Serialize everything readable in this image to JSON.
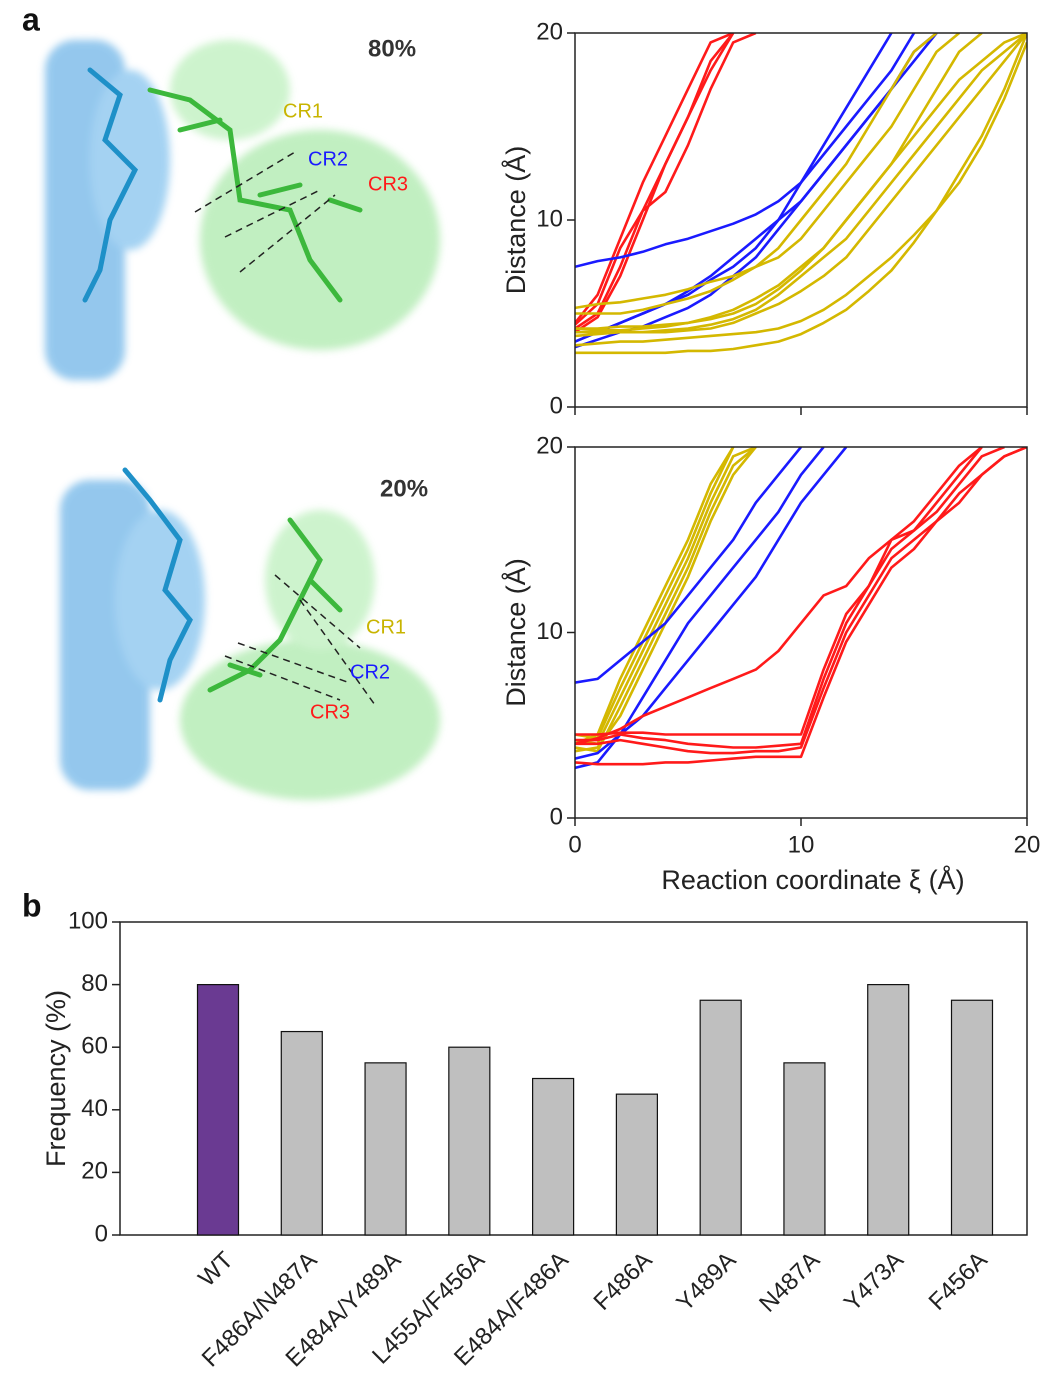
{
  "panel_labels": [
    "a",
    "b"
  ],
  "structures": [
    {
      "percent": "80%",
      "regions": [
        "CR1",
        "CR2",
        "CR3"
      ]
    },
    {
      "percent": "20%",
      "regions": [
        "CR1",
        "CR2",
        "CR3"
      ]
    }
  ],
  "chart_data": [
    {
      "type": "line",
      "y_label": "Distance (Å)",
      "x": [
        0,
        1,
        2,
        3,
        4,
        5,
        6,
        7,
        8,
        9,
        10,
        11,
        12,
        13,
        14,
        15,
        16,
        17,
        18,
        19,
        20
      ],
      "xlim": [
        0,
        20
      ],
      "xticks": [
        0,
        10,
        20
      ],
      "ylim": [
        0,
        20
      ],
      "yticks": [
        0,
        10,
        20
      ],
      "series": [
        {
          "color": "#ff1a1a",
          "values": [
            4.5,
            6,
            9,
            12,
            14.5,
            17,
            19.5,
            20,
            null,
            null,
            null,
            null,
            null,
            null,
            null,
            null,
            null,
            null,
            null,
            null,
            null
          ]
        },
        {
          "color": "#ff1a1a",
          "values": [
            4.2,
            5,
            7.5,
            10.5,
            13,
            15.5,
            18,
            20,
            null,
            null,
            null,
            null,
            null,
            null,
            null,
            null,
            null,
            null,
            null,
            null,
            null
          ]
        },
        {
          "color": "#ff1a1a",
          "values": [
            4.0,
            4.8,
            7,
            10,
            13,
            15.5,
            18.5,
            20,
            null,
            null,
            null,
            null,
            null,
            null,
            null,
            null,
            null,
            null,
            null,
            null,
            null
          ]
        },
        {
          "color": "#ff1a1a",
          "values": [
            4.4,
            5.5,
            8.5,
            10.5,
            11.5,
            14,
            17,
            19.5,
            20,
            null,
            null,
            null,
            null,
            null,
            null,
            null,
            null,
            null,
            null,
            null,
            null
          ]
        },
        {
          "color": "#1a1aff",
          "values": [
            7.5,
            7.8,
            8,
            8.3,
            8.7,
            9,
            9.4,
            9.8,
            10.3,
            11,
            12,
            13.5,
            15,
            16.5,
            18,
            20,
            null,
            null,
            null,
            null,
            null
          ]
        },
        {
          "color": "#1a1aff",
          "values": [
            3.5,
            4,
            4.5,
            5,
            5.5,
            6,
            6.8,
            7.5,
            8.5,
            10,
            12,
            14,
            16,
            18,
            20,
            null,
            null,
            null,
            null,
            null,
            null
          ]
        },
        {
          "color": "#1a1aff",
          "values": [
            3.2,
            3.6,
            4,
            4.3,
            4.8,
            5.3,
            6,
            7,
            8,
            9.5,
            11,
            12.5,
            14,
            15.5,
            17,
            19,
            20,
            null,
            null,
            null,
            null
          ]
        },
        {
          "color": "#1a1aff",
          "values": [
            3.5,
            4,
            4.5,
            5,
            5.5,
            6.2,
            7,
            8,
            9,
            10,
            11,
            12.5,
            14,
            15.5,
            17,
            18.5,
            20,
            null,
            null,
            null,
            null
          ]
        },
        {
          "color": "#d4b800",
          "values": [
            5.3,
            5.5,
            5.6,
            5.8,
            6,
            6.3,
            6.7,
            7,
            7.5,
            8,
            9,
            10.5,
            12,
            13.5,
            15,
            17,
            19,
            20,
            null,
            null,
            null
          ]
        },
        {
          "color": "#d4b800",
          "values": [
            5,
            5,
            5,
            5.2,
            5.5,
            5.8,
            6.2,
            6.8,
            7.5,
            8.5,
            10,
            11.5,
            13,
            15,
            17,
            19,
            20,
            null,
            null,
            null,
            null
          ]
        },
        {
          "color": "#d4b800",
          "values": [
            4.2,
            4.1,
            4.1,
            4.2,
            4.3,
            4.5,
            4.8,
            5.2,
            5.8,
            6.5,
            7.5,
            8.5,
            10,
            11.5,
            13,
            14.5,
            16,
            17.5,
            18.5,
            19.5,
            20
          ]
        },
        {
          "color": "#d4b800",
          "values": [
            4,
            4,
            4,
            4,
            4.1,
            4.2,
            4.4,
            4.7,
            5.2,
            6,
            7,
            8,
            9,
            10.5,
            12,
            13.5,
            15,
            16.5,
            18,
            19,
            20
          ]
        },
        {
          "color": "#d4b800",
          "values": [
            3.8,
            3.9,
            4,
            4,
            4,
            4.1,
            4.2,
            4.5,
            5,
            5.5,
            6.2,
            7,
            8,
            9.5,
            11,
            12.5,
            14,
            15.5,
            17,
            18.5,
            20
          ]
        },
        {
          "color": "#d4b800",
          "values": [
            3.3,
            3.4,
            3.5,
            3.5,
            3.6,
            3.7,
            3.8,
            3.9,
            4,
            4.2,
            4.6,
            5.2,
            6,
            7,
            8,
            9.2,
            10.5,
            12,
            14,
            16.5,
            19.5
          ]
        },
        {
          "color": "#d4b800",
          "values": [
            2.9,
            2.9,
            2.9,
            2.9,
            2.9,
            3,
            3,
            3.1,
            3.3,
            3.5,
            3.9,
            4.5,
            5.2,
            6.2,
            7.3,
            8.8,
            10.5,
            12.5,
            14.5,
            17,
            20
          ]
        },
        {
          "color": "#d4b800",
          "values": [
            4.2,
            4.2,
            4.3,
            4.3,
            4.4,
            4.5,
            4.7,
            5,
            5.5,
            6.3,
            7.3,
            8.5,
            10,
            11.5,
            13,
            15,
            17,
            19,
            20,
            null,
            null
          ]
        }
      ]
    },
    {
      "type": "line",
      "y_label": "Distance (Å)",
      "x_label": "Reaction coordinate  ξ (Å)",
      "x": [
        0,
        1,
        2,
        3,
        4,
        5,
        6,
        7,
        8,
        9,
        10,
        11,
        12,
        13,
        14,
        15,
        16,
        17,
        18,
        19,
        20
      ],
      "xlim": [
        0,
        20
      ],
      "xticks": [
        0,
        10,
        20
      ],
      "ylim": [
        0,
        20
      ],
      "yticks": [
        0,
        10,
        20
      ],
      "series": [
        {
          "color": "#d4b800",
          "values": [
            4.2,
            4,
            6.5,
            9,
            11.5,
            14,
            17,
            19.5,
            20,
            null,
            null,
            null,
            null,
            null,
            null,
            null,
            null,
            null,
            null,
            null,
            null
          ]
        },
        {
          "color": "#d4b800",
          "values": [
            4.5,
            4.3,
            7,
            9.5,
            12,
            14.5,
            17.5,
            20,
            null,
            null,
            null,
            null,
            null,
            null,
            null,
            null,
            null,
            null,
            null,
            null,
            null
          ]
        },
        {
          "color": "#d4b800",
          "values": [
            3.8,
            3.6,
            6,
            8.5,
            11,
            13.5,
            16.5,
            19,
            20,
            null,
            null,
            null,
            null,
            null,
            null,
            null,
            null,
            null,
            null,
            null,
            null
          ]
        },
        {
          "color": "#d4b800",
          "values": [
            4,
            4.5,
            7.5,
            10,
            12.5,
            15,
            18,
            20,
            null,
            null,
            null,
            null,
            null,
            null,
            null,
            null,
            null,
            null,
            null,
            null,
            null
          ]
        },
        {
          "color": "#d4b800",
          "values": [
            3.6,
            3.8,
            5.5,
            8,
            10.5,
            13,
            16,
            18.5,
            20,
            null,
            null,
            null,
            null,
            null,
            null,
            null,
            null,
            null,
            null,
            null,
            null
          ]
        },
        {
          "color": "#1a1aff",
          "values": [
            7.3,
            7.5,
            8.5,
            9.5,
            10.5,
            12,
            13.5,
            15,
            17,
            18.5,
            20,
            null,
            null,
            null,
            null,
            null,
            null,
            null,
            null,
            null,
            null
          ]
        },
        {
          "color": "#1a1aff",
          "values": [
            2.7,
            3,
            4.5,
            6.5,
            8.5,
            10.5,
            12,
            13.5,
            15,
            16.5,
            18.5,
            20,
            null,
            null,
            null,
            null,
            null,
            null,
            null,
            null,
            null
          ]
        },
        {
          "color": "#1a1aff",
          "values": [
            3.2,
            3.5,
            4.5,
            5.5,
            7,
            8.5,
            10,
            11.5,
            13,
            15,
            17,
            18.5,
            20,
            null,
            null,
            null,
            null,
            null,
            null,
            null,
            null
          ]
        },
        {
          "color": "#ff1a1a",
          "values": [
            4,
            4.3,
            4.8,
            5.5,
            6,
            6.5,
            7,
            7.5,
            8,
            9,
            10.5,
            12,
            12.5,
            14,
            15,
            16,
            17.5,
            19,
            20,
            null,
            null
          ]
        },
        {
          "color": "#ff1a1a",
          "values": [
            4.2,
            4.2,
            4.5,
            4.3,
            4.2,
            4,
            3.9,
            3.8,
            3.8,
            3.9,
            4,
            7.5,
            10.5,
            12.5,
            15,
            15.5,
            16.5,
            18,
            19.5,
            20,
            null
          ]
        },
        {
          "color": "#ff1a1a",
          "values": [
            4,
            4,
            4.2,
            4,
            3.8,
            3.6,
            3.5,
            3.5,
            3.6,
            3.6,
            3.8,
            7,
            10,
            12,
            14,
            15,
            16,
            17.5,
            18.5,
            19.5,
            20
          ]
        },
        {
          "color": "#ff1a1a",
          "values": [
            3,
            2.9,
            2.9,
            2.9,
            3,
            3,
            3.1,
            3.2,
            3.3,
            3.3,
            3.3,
            6.5,
            9.5,
            11.5,
            13.5,
            14.5,
            16,
            17,
            18.5,
            19.5,
            20
          ]
        },
        {
          "color": "#ff1a1a",
          "values": [
            4.5,
            4.5,
            4.6,
            4.6,
            4.5,
            4.5,
            4.5,
            4.5,
            4.5,
            4.5,
            4.5,
            8,
            11,
            12.5,
            14.5,
            15.5,
            17,
            18.5,
            20,
            null,
            null
          ]
        }
      ]
    },
    {
      "type": "bar",
      "y_label": "Frequency (%)",
      "categories": [
        "WT",
        "F486A/N487A",
        "E484A/Y489A",
        "L455A/F456A",
        "E484A/F486A",
        "F486A",
        "Y489A",
        "N487A",
        "Y473A",
        "F456A"
      ],
      "values": [
        80,
        65,
        55,
        60,
        50,
        45,
        75,
        55,
        80,
        75
      ],
      "colors": [
        "#6a3a92",
        "#bfbfbf",
        "#bfbfbf",
        "#bfbfbf",
        "#bfbfbf",
        "#bfbfbf",
        "#bfbfbf",
        "#bfbfbf",
        "#bfbfbf",
        "#bfbfbf"
      ],
      "ylim": [
        0,
        100
      ],
      "yticks": [
        0,
        20,
        40,
        60,
        80,
        100
      ]
    }
  ]
}
